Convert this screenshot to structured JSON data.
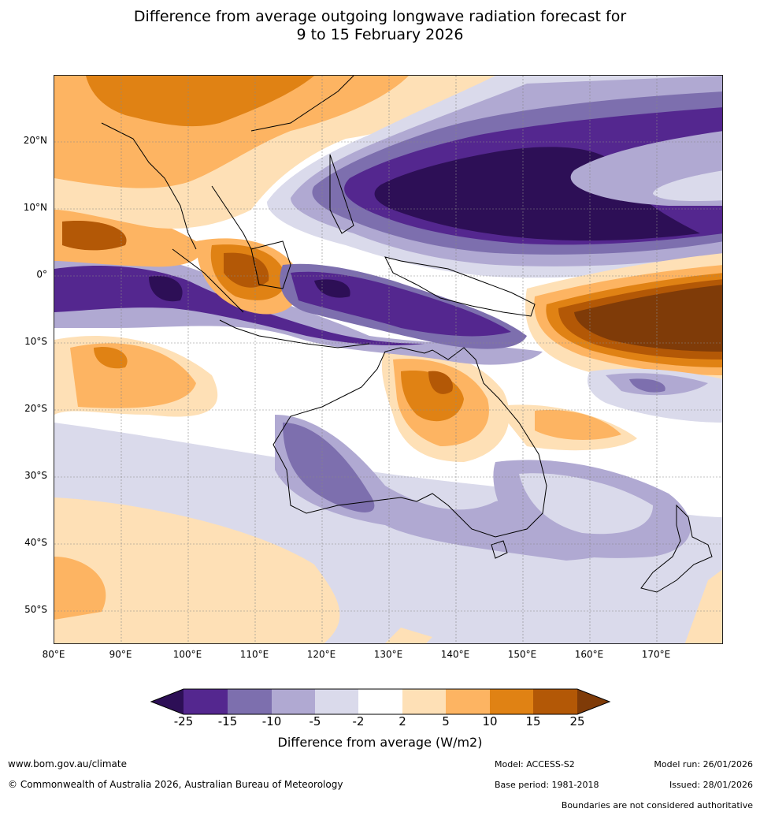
{
  "title": {
    "line1": "Difference from average outgoing longwave radiation forecast for",
    "line2": "9 to 15 February 2026"
  },
  "map": {
    "lat_ticks": [
      "20°N",
      "10°N",
      "0°",
      "10°S",
      "20°S",
      "30°S",
      "40°S",
      "50°S"
    ],
    "lon_ticks": [
      "80°E",
      "90°E",
      "100°E",
      "110°E",
      "120°E",
      "130°E",
      "140°E",
      "150°E",
      "160°E",
      "170°E"
    ],
    "lat_range": [
      -55,
      30
    ],
    "lon_range": [
      80,
      180
    ]
  },
  "legend": {
    "title": "Difference from average (W/m2)",
    "tick_labels": [
      "-25",
      "-15",
      "-10",
      "-5",
      "-2",
      "2",
      "5",
      "10",
      "15",
      "25"
    ],
    "colors": [
      "#2d0f56",
      "#54278f",
      "#7d6fae",
      "#b0a9d2",
      "#dadaeb",
      "#ffffff",
      "#fee0b6",
      "#fdb462",
      "#e08214",
      "#b35806",
      "#7f3b08"
    ]
  },
  "footer": {
    "website": "www.bom.gov.au/climate",
    "copyright": "© Commonwealth of Australia 2026, Australian Bureau of Meteorology",
    "model": "Model: ACCESS-S2",
    "base_period": "Base period: 1981-2018",
    "model_run": "Model run: 26/01/2026",
    "issued": "Issued: 28/01/2026",
    "disclaimer": "Boundaries are not considered authoritative"
  }
}
